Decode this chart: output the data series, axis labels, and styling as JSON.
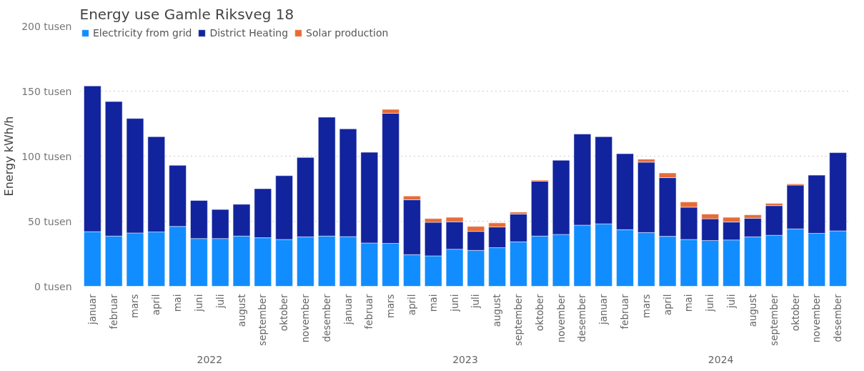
{
  "chart_data": {
    "type": "bar",
    "stacked": true,
    "title": "Energy use Gamle Riksveg 18",
    "ylabel": "Energy kWh/h",
    "categories": [
      "januar",
      "februar",
      "mars",
      "april",
      "mai",
      "juni",
      "juli",
      "august",
      "september",
      "oktober",
      "november",
      "desember",
      "januar",
      "februar",
      "mars",
      "april",
      "mai",
      "juni",
      "juli",
      "august",
      "september",
      "oktober",
      "november",
      "desember",
      "januar",
      "februar",
      "mars",
      "april",
      "mai",
      "juni",
      "juli",
      "august",
      "september",
      "oktober",
      "november",
      "desember"
    ],
    "annotations": [
      "2022",
      "2023",
      "2024"
    ],
    "series": [
      {
        "name": "Electricity from grid",
        "color": "#118dff",
        "values": [
          42,
          38.6,
          41,
          41.8,
          46,
          36.7,
          36.7,
          38.6,
          37.3,
          36,
          38,
          38.6,
          38.2,
          33.3,
          33,
          24.3,
          23.4,
          28.5,
          27.6,
          29.7,
          34.2,
          38.6,
          39.9,
          47,
          48,
          43.5,
          41.3,
          38.4,
          36,
          35.2,
          35.6,
          38,
          39.2,
          44.1,
          40.7,
          42.6
        ]
      },
      {
        "name": "District Heating",
        "color": "#12239e",
        "values": [
          112,
          103.4,
          88,
          73.2,
          47,
          29.3,
          22.3,
          24.4,
          37.7,
          49,
          61,
          91.4,
          82.8,
          69.7,
          100,
          42.2,
          25.8,
          21.1,
          14.6,
          15.9,
          21.3,
          42.2,
          57,
          70,
          67,
          58.4,
          54.1,
          45.1,
          24.8,
          16.7,
          13.8,
          14.3,
          22.8,
          33.7,
          44.7,
          60.1
        ]
      },
      {
        "name": "Solar production",
        "color": "#e66c37",
        "values": [
          null,
          null,
          null,
          null,
          null,
          null,
          null,
          null,
          null,
          null,
          null,
          null,
          null,
          null,
          3,
          2.9,
          2.8,
          3.4,
          3.8,
          3.1,
          1.5,
          0.8,
          null,
          null,
          null,
          null,
          2.3,
          3.6,
          4,
          3.6,
          3.6,
          2.6,
          1.7,
          0.9,
          null,
          null
        ]
      }
    ],
    "ylim": [
      0,
      200
    ],
    "yticks": [
      {
        "value": 0,
        "label": "0 tusen"
      },
      {
        "value": 50,
        "label": "50 tusen"
      },
      {
        "value": 100,
        "label": "100 tusen"
      },
      {
        "value": 150,
        "label": "150 tusen"
      },
      {
        "value": 200,
        "label": "200 tusen"
      }
    ],
    "grid": "y",
    "legend": "top left"
  }
}
